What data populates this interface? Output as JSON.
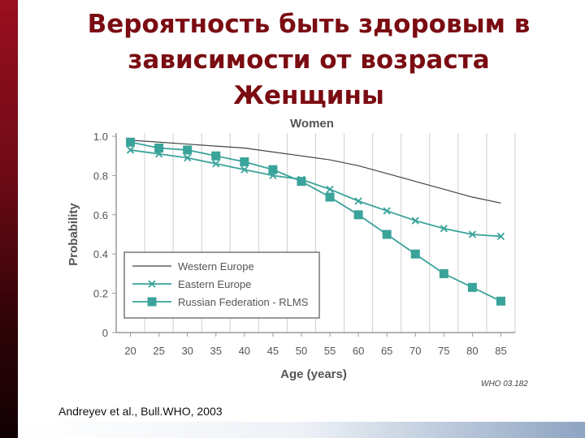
{
  "slide": {
    "title_lines": [
      "Вероятность быть здоровым в",
      "зависимости от возраста",
      "Женщины"
    ],
    "citation": "Andreyev et al., Bull.WHO, 2003",
    "source_mark": "WHO 03.182"
  },
  "colors": {
    "title": "#7a0c12",
    "teal": "#3aa39a",
    "line_dark": "#444444",
    "accent_bar": "#7a0c12"
  },
  "chart_data": {
    "type": "line",
    "title": "Women",
    "xlabel": "Age (years)",
    "ylabel": "Probability",
    "x": [
      20,
      25,
      30,
      35,
      40,
      45,
      50,
      55,
      60,
      65,
      70,
      75,
      80,
      85
    ],
    "xlim": [
      17.5,
      87.5
    ],
    "ylim": [
      0,
      1.0
    ],
    "yticks": [
      0,
      0.2,
      0.4,
      0.6,
      0.8,
      1.0
    ],
    "ytick_labels": [
      "0",
      "0.2",
      "0.4",
      "0.6",
      "0.8",
      "1.0"
    ],
    "grid": "vertical",
    "legend_position": "bottom-left",
    "series": [
      {
        "name": "Western Europe",
        "marker": "none",
        "color": "#444444",
        "values": [
          0.98,
          0.97,
          0.96,
          0.95,
          0.94,
          0.92,
          0.9,
          0.88,
          0.85,
          0.81,
          0.77,
          0.73,
          0.69,
          0.66
        ]
      },
      {
        "name": "Eastern Europe",
        "marker": "x",
        "color": "#3aa39a",
        "values": [
          0.93,
          0.91,
          0.89,
          0.86,
          0.83,
          0.8,
          0.78,
          0.73,
          0.67,
          0.62,
          0.57,
          0.53,
          0.5,
          0.49
        ]
      },
      {
        "name": "Russian Federation - RLMS",
        "marker": "square",
        "color": "#3aa39a",
        "values": [
          0.97,
          0.94,
          0.93,
          0.9,
          0.87,
          0.83,
          0.77,
          0.69,
          0.6,
          0.5,
          0.4,
          0.3,
          0.23,
          0.16
        ]
      }
    ]
  }
}
